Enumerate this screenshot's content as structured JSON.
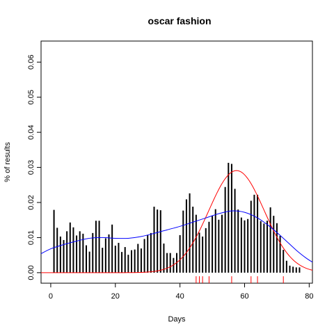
{
  "chart_data": {
    "type": "bar",
    "title": "oscar fashion",
    "xlabel": "Days",
    "ylabel": "% of results",
    "xlim": [
      -3,
      81
    ],
    "ylim": [
      -0.003,
      0.066
    ],
    "x_ticks": [
      0,
      20,
      40,
      60,
      80
    ],
    "y_ticks": [
      0.0,
      0.01,
      0.02,
      0.03,
      0.04,
      0.05,
      0.06
    ],
    "x_tick_labels": [
      "0",
      "20",
      "40",
      "60",
      "80"
    ],
    "y_tick_labels": [
      "0.00",
      "0.01",
      "0.02",
      "0.03",
      "0.04",
      "0.05",
      "0.06"
    ],
    "grid": false,
    "legend": "none",
    "bars": {
      "color": "#000000",
      "x": [
        1,
        2,
        3,
        4,
        5,
        6,
        7,
        8,
        9,
        10,
        11,
        12,
        13,
        14,
        15,
        16,
        17,
        18,
        19,
        20,
        21,
        22,
        23,
        24,
        25,
        26,
        27,
        28,
        29,
        30,
        31,
        32,
        33,
        34,
        35,
        36,
        37,
        38,
        39,
        40,
        41,
        42,
        43,
        44,
        45,
        46,
        47,
        48,
        49,
        50,
        51,
        52,
        53,
        54,
        55,
        56,
        57,
        58,
        59,
        60,
        61,
        62,
        63,
        64,
        65,
        66,
        67,
        68,
        69,
        70,
        71,
        72,
        73,
        74,
        75,
        76,
        77
      ],
      "values": [
        0.0179,
        0.0128,
        0.0103,
        0.0093,
        0.0118,
        0.0143,
        0.0129,
        0.0106,
        0.0118,
        0.0111,
        0.0078,
        0.006,
        0.0113,
        0.0148,
        0.0148,
        0.0071,
        0.0098,
        0.0109,
        0.0137,
        0.0077,
        0.0085,
        0.0059,
        0.0073,
        0.0051,
        0.0064,
        0.0066,
        0.0082,
        0.0069,
        0.0096,
        0.0108,
        0.0113,
        0.0188,
        0.018,
        0.0178,
        0.0083,
        0.0056,
        0.0056,
        0.0042,
        0.0056,
        0.0107,
        0.0177,
        0.0209,
        0.0226,
        0.0188,
        0.0165,
        0.0114,
        0.0103,
        0.0127,
        0.0145,
        0.0162,
        0.0181,
        0.0151,
        0.0165,
        0.0244,
        0.0313,
        0.031,
        0.0239,
        0.018,
        0.0157,
        0.0149,
        0.0153,
        0.0205,
        0.0222,
        0.0222,
        0.0147,
        0.014,
        0.0148,
        0.0186,
        0.0162,
        0.0141,
        0.0105,
        0.0065,
        0.0034,
        0.002,
        0.0017,
        0.0015,
        0.0015
      ]
    },
    "curves": [
      {
        "color": "#ff0000",
        "type": "gaussian",
        "peak": 0.0291,
        "mean": 57.5,
        "sd": 8.6,
        "x_range": [
          -3,
          81
        ]
      },
      {
        "color": "#0000ff",
        "type": "bimodal-smooth",
        "points": [
          [
            -3,
            0.0054
          ],
          [
            0,
            0.0068
          ],
          [
            4,
            0.008
          ],
          [
            8,
            0.009
          ],
          [
            12,
            0.0098
          ],
          [
            16,
            0.01
          ],
          [
            20,
            0.0098
          ],
          [
            24,
            0.0098
          ],
          [
            28,
            0.0103
          ],
          [
            32,
            0.0112
          ],
          [
            36,
            0.0122
          ],
          [
            40,
            0.0132
          ],
          [
            44,
            0.0144
          ],
          [
            48,
            0.0156
          ],
          [
            52,
            0.0168
          ],
          [
            56,
            0.0176
          ],
          [
            60,
            0.0172
          ],
          [
            64,
            0.0156
          ],
          [
            68,
            0.013
          ],
          [
            72,
            0.0098
          ],
          [
            76,
            0.0064
          ],
          [
            79,
            0.0042
          ],
          [
            81,
            0.003
          ]
        ]
      }
    ],
    "rug": {
      "color": "#ff0000",
      "x": [
        45,
        46,
        47,
        49,
        56,
        62,
        64,
        72
      ]
    }
  }
}
